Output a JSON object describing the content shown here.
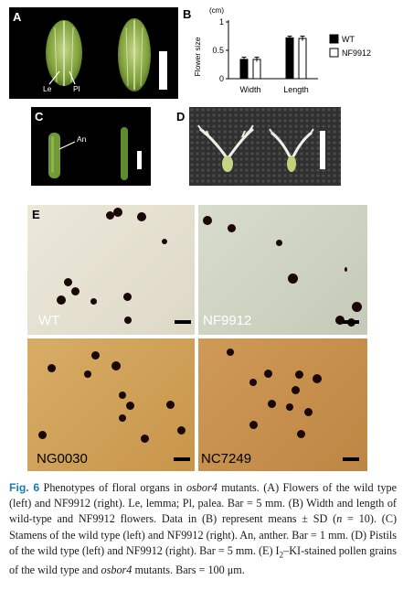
{
  "panels": {
    "A": {
      "letter": "A",
      "labels": [
        "Le",
        "Pl"
      ]
    },
    "B": {
      "letter": "B"
    },
    "C": {
      "letter": "C",
      "labels": [
        "An"
      ]
    },
    "D": {
      "letter": "D"
    },
    "E": {
      "letter": "E",
      "sub_labels": [
        "WT",
        "NF9912",
        "NG0030",
        "NC7249"
      ]
    }
  },
  "chart_data": {
    "type": "bar",
    "title": "",
    "ylabel": "Flower size",
    "yunit": "(cm)",
    "ylim": [
      0,
      1
    ],
    "yticks": [
      "0",
      "0.5",
      "1"
    ],
    "categories": [
      "Width",
      "Length"
    ],
    "series": [
      {
        "name": "WT",
        "color": "#000000",
        "values": [
          0.34,
          0.72
        ],
        "sd": [
          0.04,
          0.03
        ]
      },
      {
        "name": "NF9912",
        "color": "#ffffff",
        "values": [
          0.34,
          0.71
        ],
        "sd": [
          0.04,
          0.04
        ]
      }
    ],
    "legend": "right"
  },
  "caption": {
    "fig_label": "Fig. 6",
    "text_before_italic": " Phenotypes of floral organs in ",
    "italic": "osbor4",
    "text_1": " mutants. (A) Flowers of the wild type (left) and NF9912 (right). Le, lemma; Pl, palea. Bar = 5 mm. (B) Width and length of wild-type and NF9912 flowers. Data in (B) represent means ± SD (",
    "n_italic": "n",
    "text_2": " = 10). (C) Stamens of the wild type (left) and NF9912 (right). An, anther. Bar = 1 mm. (D) Pistils of the wild type (left) and NF9912 (right). Bar = 5 mm. (E) I",
    "sub2": "2",
    "text_3": "–KI-stained pollen grains of the wild type and ",
    "italic_2": "osbor4",
    "text_4": " mutants. Bars = 100 μm."
  }
}
